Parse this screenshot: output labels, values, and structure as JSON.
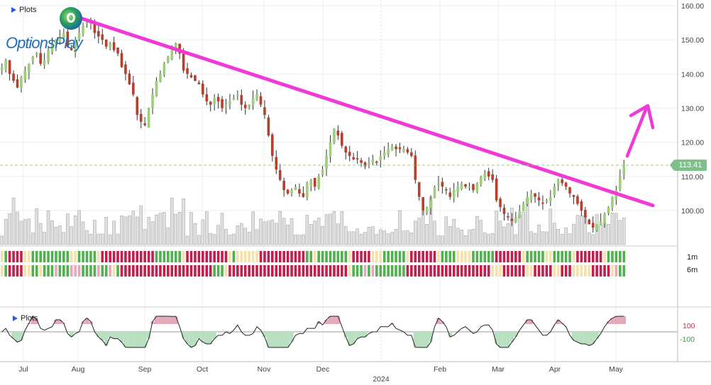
{
  "panels": {
    "main_header": "Plots",
    "oscillator_header": "Plots",
    "row_labels": [
      "1m",
      "6m"
    ],
    "osc_ticks": [
      "100",
      "-100"
    ]
  },
  "logo": {
    "text": "OptionsPlay"
  },
  "price_tag": {
    "value": "113.41",
    "color": "#7fbf8c"
  },
  "colors": {
    "up": "#9dcf7a",
    "down": "#b5402e",
    "trendline": "#f03ad8",
    "volume": "#e0e0e0",
    "band_green": "#52b050",
    "band_red": "#c0204e",
    "band_yellow": "#f4e2a8",
    "band_pink": "#e8a7c0",
    "osc_line": "#222222",
    "osc_pos_fill": "#e4a8b8",
    "osc_neg_fill": "#b8dfc0"
  },
  "chart_data": {
    "type": "candlestick",
    "title": "",
    "y_axis": {
      "ticks": [
        "160.00",
        "150.00",
        "140.00",
        "130.00",
        "120.00",
        "110.00",
        "100.00"
      ],
      "range": [
        90,
        160
      ],
      "side": "right"
    },
    "x_axis": {
      "ticks": [
        "Jul",
        "Aug",
        "Sep",
        "Oct",
        "Nov",
        "Dec",
        "Feb",
        "Mar",
        "Apr",
        "May"
      ],
      "year_label": "2024"
    },
    "last_price": 113.41,
    "trendline": {
      "start": {
        "date": "Aug",
        "price": 157
      },
      "end": {
        "date": "mid-May",
        "price": 101.5
      }
    },
    "arrow": {
      "direction": "up-right"
    },
    "closes": [
      142,
      144,
      140,
      138,
      136,
      139,
      141,
      143,
      145,
      146,
      143,
      144,
      147,
      149,
      150,
      151,
      152,
      148,
      147,
      150,
      152,
      154,
      155,
      156,
      152,
      151,
      150,
      148,
      149,
      147,
      146,
      142,
      140,
      137,
      134,
      128,
      126,
      125,
      130,
      134,
      138,
      140,
      143,
      145,
      147,
      149,
      146,
      141,
      140,
      139,
      138,
      137,
      134,
      132,
      131,
      133,
      132,
      130,
      131,
      132,
      133,
      134,
      131,
      130,
      131,
      133,
      134,
      131,
      128,
      122,
      116,
      112,
      109,
      106,
      105,
      106,
      107,
      105,
      104,
      108,
      109,
      107,
      110,
      112,
      116,
      120,
      124,
      122,
      119,
      117,
      116,
      115,
      115,
      114,
      113,
      114,
      115,
      114,
      116,
      117,
      118,
      119,
      118,
      118,
      118,
      117,
      116,
      109,
      104,
      100,
      101,
      103,
      107,
      108,
      107,
      106,
      104,
      106,
      107,
      108,
      107,
      107,
      106,
      108,
      110,
      111,
      110,
      109,
      103,
      101,
      99,
      98,
      97,
      98,
      100,
      102,
      104,
      105,
      104,
      103,
      102,
      103,
      104,
      107,
      109,
      108,
      107,
      105,
      104,
      102,
      100,
      98,
      96,
      95,
      96,
      97,
      99,
      101,
      104,
      106,
      110,
      113.41
    ],
    "oscillator": {
      "ticks": [
        100,
        -100
      ]
    }
  }
}
